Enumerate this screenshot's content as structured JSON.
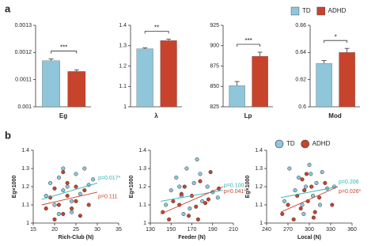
{
  "panel_labels": [
    "a",
    "b"
  ],
  "chart_data": [
    {
      "type": "bar",
      "categories": [
        "Eg"
      ],
      "ylim": [
        0.001,
        0.0013
      ],
      "yticks": [
        0.001,
        0.0011,
        0.0012,
        0.0013
      ],
      "sig": "***",
      "legend": "top-right",
      "series": [
        {
          "name": "TD",
          "color": "#8fc6da",
          "values": [
            0.00117
          ],
          "errors": [
            6e-06
          ]
        },
        {
          "name": "ADHD",
          "color": "#c8432b",
          "values": [
            0.00113
          ],
          "errors": [
            6e-06
          ]
        }
      ]
    },
    {
      "type": "bar",
      "categories": [
        "λ"
      ],
      "ylim": [
        1,
        1.4
      ],
      "yticks": [
        1,
        1.1,
        1.2,
        1.3,
        1.4
      ],
      "sig": "**",
      "series": [
        {
          "name": "TD",
          "color": "#8fc6da",
          "values": [
            1.285
          ],
          "errors": [
            0.004
          ]
        },
        {
          "name": "ADHD",
          "color": "#c8432b",
          "values": [
            1.325
          ],
          "errors": [
            0.007
          ]
        }
      ]
    },
    {
      "type": "bar",
      "categories": [
        "Lp"
      ],
      "ylim": [
        825,
        925
      ],
      "yticks": [
        825,
        850,
        875,
        900,
        925
      ],
      "sig": "***",
      "series": [
        {
          "name": "TD",
          "color": "#8fc6da",
          "values": [
            851
          ],
          "errors": [
            5
          ]
        },
        {
          "name": "ADHD",
          "color": "#c8432b",
          "values": [
            887
          ],
          "errors": [
            5
          ]
        }
      ]
    },
    {
      "type": "bar",
      "categories": [
        "Mod"
      ],
      "ylim": [
        0.6,
        0.66
      ],
      "yticks": [
        0.6,
        0.62,
        0.64,
        0.66
      ],
      "sig": "*",
      "series": [
        {
          "name": "TD",
          "color": "#8fc6da",
          "values": [
            0.632
          ],
          "errors": [
            0.002
          ]
        },
        {
          "name": "ADHD",
          "color": "#c8432b",
          "values": [
            0.64
          ],
          "errors": [
            0.003
          ]
        }
      ]
    },
    {
      "type": "scatter",
      "x_label": "Rich-Club (N)",
      "y_label": "Eg×1000",
      "xlim": [
        15,
        35
      ],
      "xticks": [
        15,
        20,
        25,
        30,
        35
      ],
      "ylim": [
        1,
        1.4
      ],
      "yticks": [
        1,
        1.1,
        1.2,
        1.3,
        1.4
      ],
      "trend_x": [
        17,
        30
      ],
      "series": [
        {
          "name": "TD",
          "color": "#8fc6da",
          "annotation_color": "#2fb3b3",
          "annotation": "p=0.017*",
          "trend": [
            1.13,
            1.22
          ],
          "x": [
            18,
            19,
            20,
            21,
            22,
            22,
            23,
            24,
            25,
            26,
            27,
            28,
            29,
            24,
            21
          ],
          "y": [
            1.15,
            1.22,
            1.1,
            1.25,
            1.18,
            1.3,
            1.2,
            1.12,
            1.27,
            1.16,
            1.3,
            1.21,
            1.24,
            1.06,
            1.05
          ]
        },
        {
          "name": "ADHD",
          "color": "#c8432b",
          "annotation_color": "#c8432b",
          "annotation": "p=0.111",
          "trend": [
            1.1,
            1.17
          ],
          "x": [
            18,
            19,
            20,
            20,
            21,
            22,
            23,
            23,
            24,
            25,
            26,
            27,
            28,
            22,
            25
          ],
          "y": [
            1.08,
            1.14,
            1.02,
            1.19,
            1.1,
            1.05,
            1.15,
            1.22,
            1.08,
            1.12,
            1.04,
            1.18,
            1.1,
            1.28,
            1.2
          ]
        }
      ]
    },
    {
      "type": "scatter",
      "x_label": "Feeder (N)",
      "y_label": "Eg×1000",
      "xlim": [
        130,
        210
      ],
      "xticks": [
        130,
        150,
        170,
        190,
        210
      ],
      "ylim": [
        1,
        1.4
      ],
      "yticks": [
        1,
        1.1,
        1.2,
        1.3,
        1.4
      ],
      "trend_x": [
        140,
        200
      ],
      "series": [
        {
          "name": "TD",
          "color": "#8fc6da",
          "annotation_color": "#2fb3b3",
          "annotation": "p=0.100",
          "trend": [
            1.12,
            1.18
          ],
          "x": [
            145,
            150,
            155,
            160,
            165,
            168,
            172,
            175,
            180,
            185,
            190,
            195,
            162,
            178,
            158
          ],
          "y": [
            1.1,
            1.18,
            1.25,
            1.15,
            1.3,
            1.08,
            1.22,
            1.35,
            1.12,
            1.2,
            1.17,
            1.14,
            1.05,
            1.27,
            1.2
          ]
        },
        {
          "name": "ADHD",
          "color": "#c8432b",
          "annotation_color": "#c8432b",
          "annotation": "p=0.041*",
          "trend": [
            1.05,
            1.2
          ],
          "x": [
            142,
            148,
            152,
            158,
            163,
            167,
            170,
            174,
            178,
            183,
            188,
            196,
            160,
            176,
            186
          ],
          "y": [
            1.06,
            1.02,
            1.12,
            1.1,
            1.2,
            1.04,
            1.15,
            1.09,
            1.23,
            1.11,
            1.28,
            1.19,
            1.16,
            1.02,
            1.13
          ]
        }
      ]
    },
    {
      "type": "scatter",
      "x_label": "Local (N)",
      "y_label": "Eg×1000",
      "xlim": [
        240,
        360
      ],
      "xticks": [
        240,
        270,
        300,
        330,
        360
      ],
      "ylim": [
        1,
        1.4
      ],
      "yticks": [
        1,
        1.1,
        1.2,
        1.3,
        1.4
      ],
      "trend_x": [
        260,
        340
      ],
      "legend": "top-right",
      "series": [
        {
          "name": "TD",
          "color": "#8fc6da",
          "annotation_color": "#2fb3b3",
          "annotation": "p=0.206",
          "trend": [
            1.14,
            1.2
          ],
          "x": [
            265,
            272,
            280,
            285,
            290,
            295,
            300,
            305,
            310,
            318,
            325,
            335,
            292,
            302,
            315
          ],
          "y": [
            1.12,
            1.3,
            1.18,
            1.25,
            1.1,
            1.2,
            1.32,
            1.15,
            1.22,
            1.28,
            1.19,
            1.2,
            1.05,
            1.27,
            1.1
          ]
        },
        {
          "name": "ADHD",
          "color": "#c8432b",
          "annotation_color": "#c8432b",
          "annotation": "p=0.026*",
          "trend": [
            1.06,
            1.2
          ],
          "x": [
            262,
            270,
            278,
            283,
            288,
            293,
            298,
            303,
            308,
            314,
            322,
            332,
            296,
            306,
            290
          ],
          "y": [
            1.05,
            1.1,
            1.02,
            1.15,
            1.08,
            1.18,
            1.12,
            1.2,
            1.06,
            1.14,
            1.22,
            1.1,
            1.27,
            1.03,
            1.24
          ]
        }
      ]
    }
  ]
}
